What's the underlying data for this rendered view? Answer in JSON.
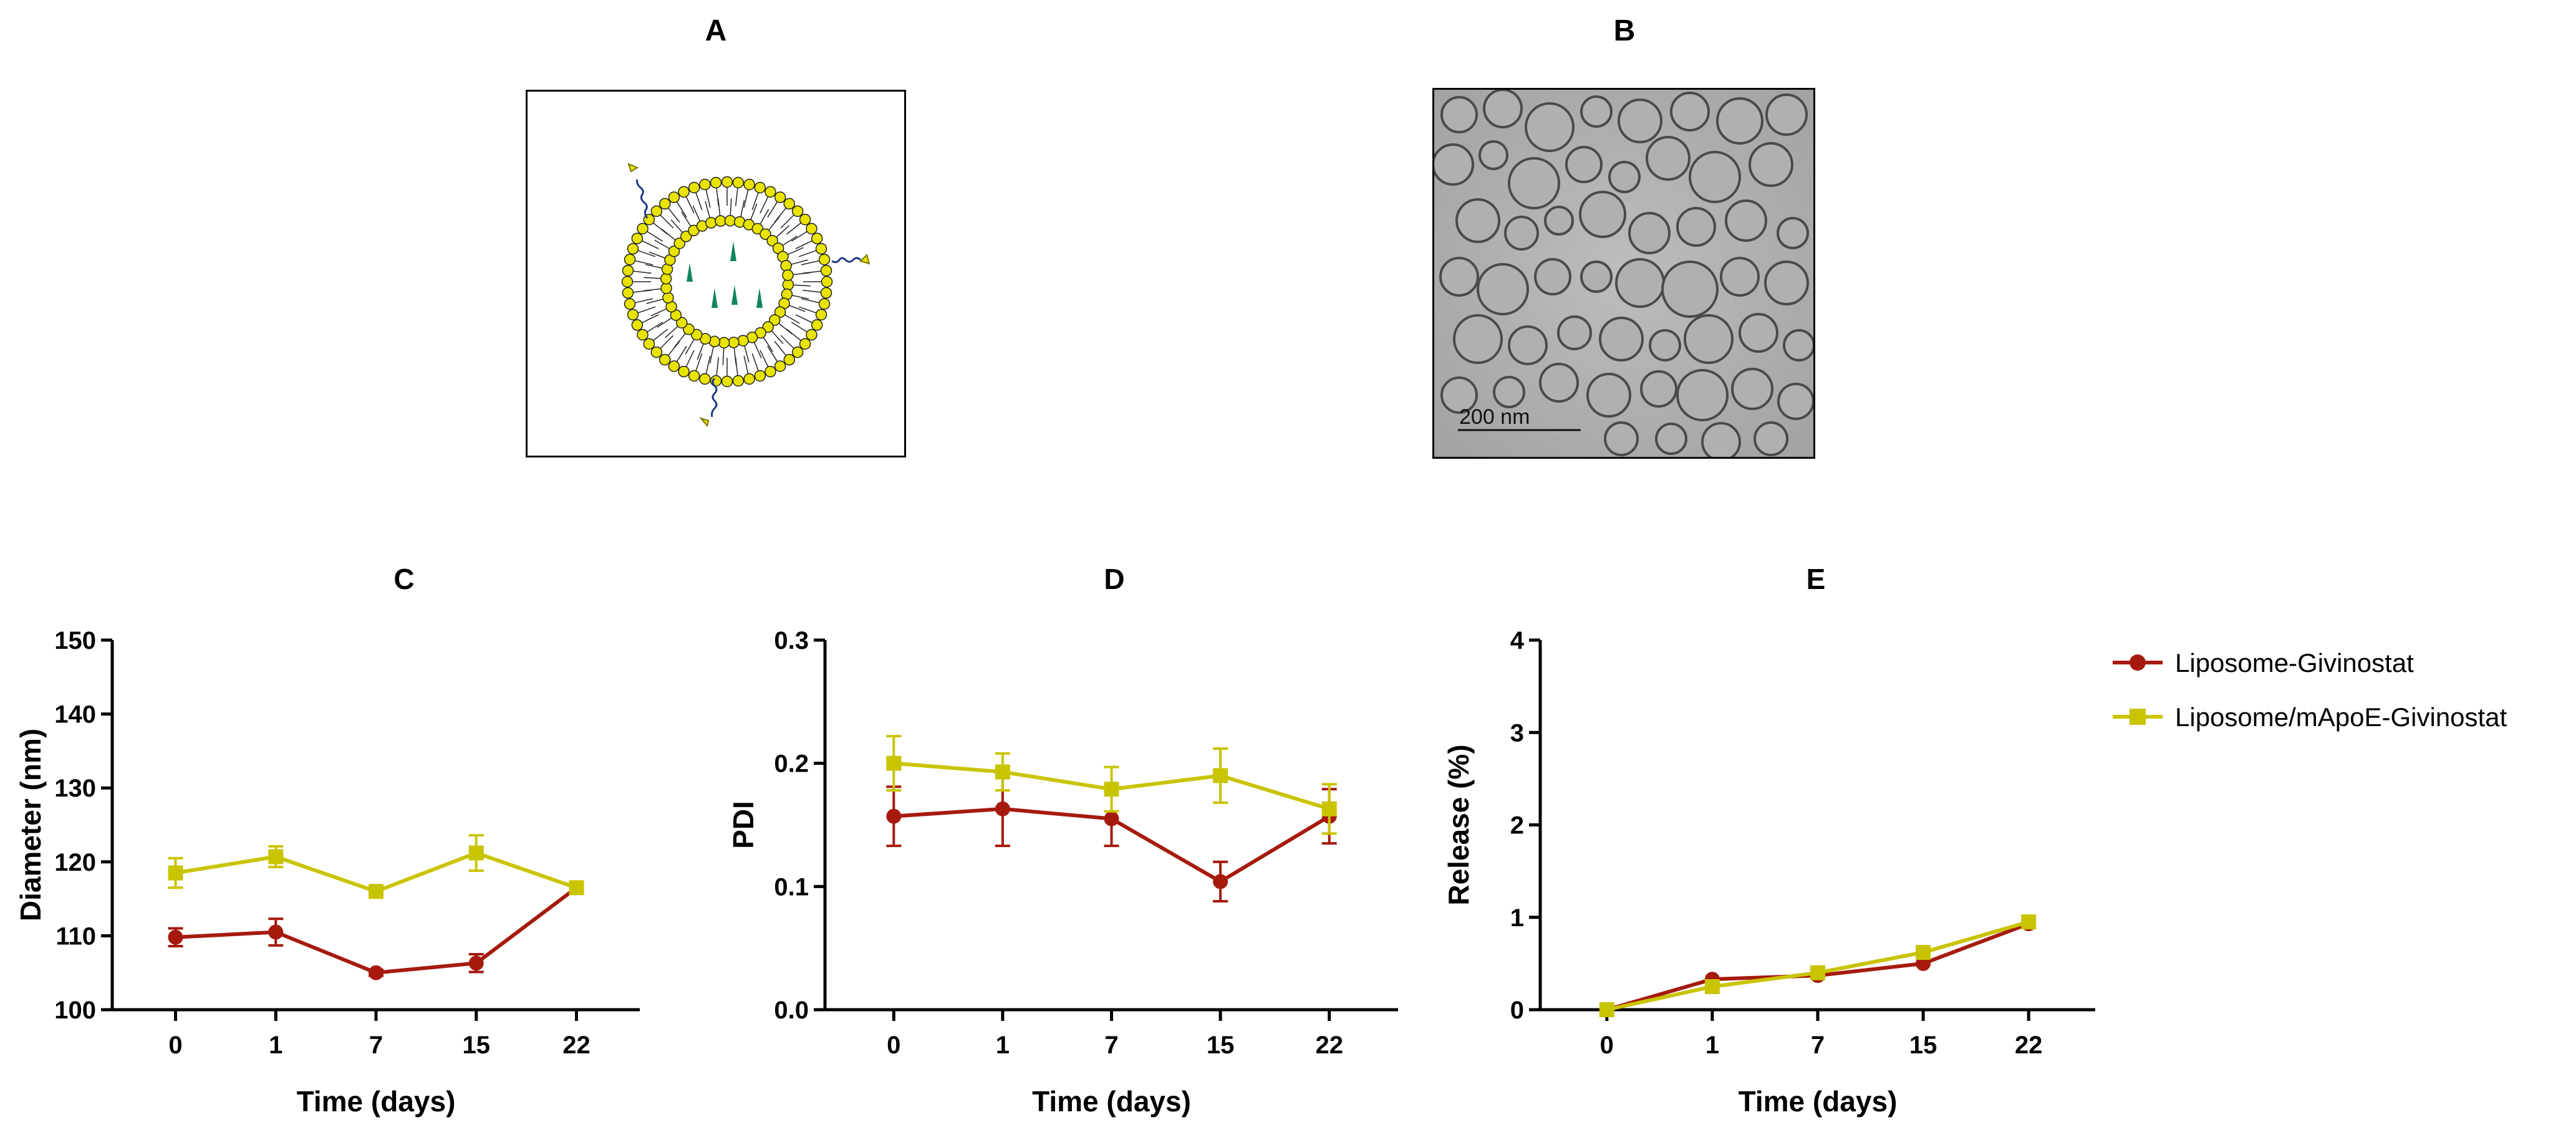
{
  "panels": {
    "A": {
      "label": "A"
    },
    "B": {
      "label": "B",
      "scale_bar": "200 nm"
    }
  },
  "legend": {
    "items": [
      {
        "label": "Liposome-Givinostat",
        "color": "#a61a0e",
        "marker": "circle"
      },
      {
        "label": "Liposome/mApoE-Givinostat",
        "color": "#c9c400",
        "marker": "square"
      }
    ]
  },
  "chart_data": [
    {
      "id": "C",
      "type": "line",
      "title": "C",
      "xlabel": "Time (days)",
      "ylabel": "Diameter (nm)",
      "categories": [
        "0",
        "1",
        "7",
        "15",
        "22"
      ],
      "ylim": [
        100,
        150
      ],
      "yticks": [
        100,
        110,
        120,
        130,
        140,
        150
      ],
      "ytick_labels": [
        "100",
        "110",
        "120",
        "130",
        "140",
        "150"
      ],
      "series": [
        {
          "name": "Liposome-Givinostat",
          "values": [
            109.8,
            110.5,
            105.0,
            106.3,
            116.5
          ],
          "errors": [
            1.2,
            1.8,
            0.4,
            1.2,
            0.6
          ]
        },
        {
          "name": "Liposome/mApoE-Givinostat",
          "values": [
            118.5,
            120.7,
            116.0,
            121.2,
            116.5
          ],
          "errors": [
            2.0,
            1.4,
            0.6,
            2.4,
            0.8
          ]
        }
      ]
    },
    {
      "id": "D",
      "type": "line",
      "title": "D",
      "xlabel": "Time (days)",
      "ylabel": "PDI",
      "categories": [
        "0",
        "1",
        "7",
        "15",
        "22"
      ],
      "ylim": [
        0,
        0.3
      ],
      "yticks": [
        0,
        0.1,
        0.2,
        0.3
      ],
      "ytick_labels": [
        "0.0",
        "0.1",
        "0.2",
        "0.3"
      ],
      "series": [
        {
          "name": "Liposome-Givinostat",
          "values": [
            0.157,
            0.163,
            0.155,
            0.104,
            0.157
          ],
          "errors": [
            0.024,
            0.03,
            0.022,
            0.016,
            0.022
          ]
        },
        {
          "name": "Liposome/mApoE-Givinostat",
          "values": [
            0.2,
            0.193,
            0.179,
            0.19,
            0.163
          ],
          "errors": [
            0.022,
            0.015,
            0.018,
            0.022,
            0.02
          ]
        }
      ]
    },
    {
      "id": "E",
      "type": "line",
      "title": "E",
      "xlabel": "Time (days)",
      "ylabel": "Release (%)",
      "categories": [
        "0",
        "1",
        "7",
        "15",
        "22"
      ],
      "ylim": [
        0,
        4
      ],
      "yticks": [
        0,
        1,
        2,
        3,
        4
      ],
      "ytick_labels": [
        "0",
        "1",
        "2",
        "3",
        "4"
      ],
      "series": [
        {
          "name": "Liposome-Givinostat",
          "values": [
            0.0,
            0.33,
            0.37,
            0.5,
            0.93
          ],
          "errors": [
            0,
            0,
            0,
            0,
            0
          ]
        },
        {
          "name": "Liposome/mApoE-Givinostat",
          "values": [
            0.0,
            0.25,
            0.4,
            0.62,
            0.95
          ],
          "errors": [
            0,
            0,
            0,
            0,
            0
          ]
        }
      ]
    }
  ]
}
